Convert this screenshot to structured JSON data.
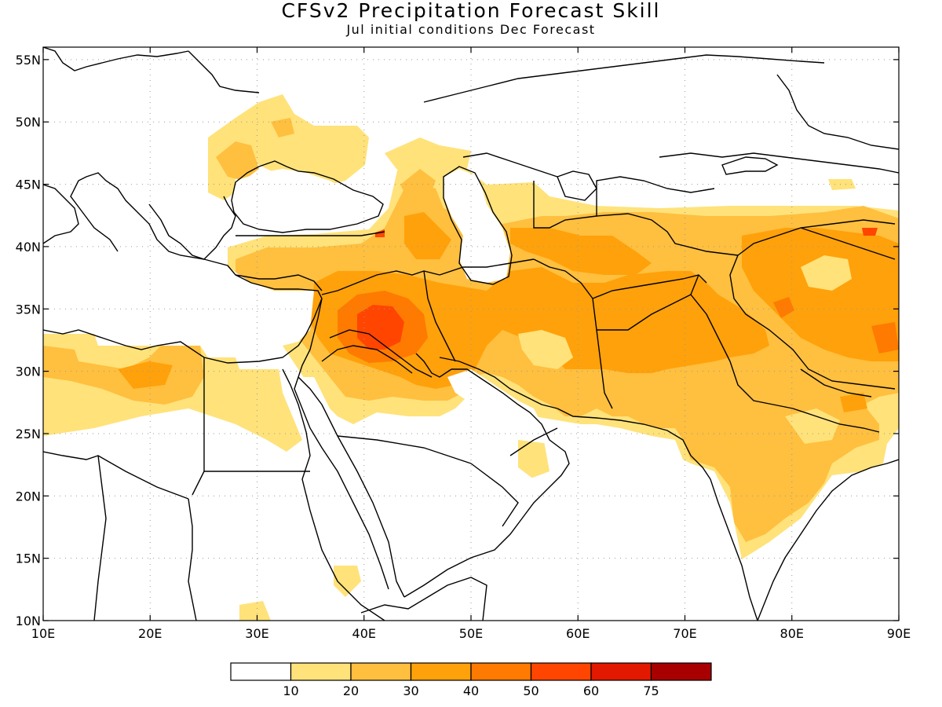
{
  "header": {
    "title": "CFSv2 Precipitation Forecast Skill",
    "subtitle": "Jul initial conditions   Dec Forecast"
  },
  "map": {
    "lon_range": [
      10,
      90
    ],
    "lat_range": [
      10,
      56
    ],
    "lat_ticks": [
      {
        "value": 55,
        "label": "55N"
      },
      {
        "value": 50,
        "label": "50N"
      },
      {
        "value": 45,
        "label": "45N"
      },
      {
        "value": 40,
        "label": "40N"
      },
      {
        "value": 35,
        "label": "35N"
      },
      {
        "value": 30,
        "label": "30N"
      },
      {
        "value": 25,
        "label": "25N"
      },
      {
        "value": 20,
        "label": "20N"
      },
      {
        "value": 15,
        "label": "15N"
      },
      {
        "value": 10,
        "label": "10N"
      }
    ],
    "lon_ticks": [
      {
        "value": 10,
        "label": "10E"
      },
      {
        "value": 20,
        "label": "20E"
      },
      {
        "value": 30,
        "label": "30E"
      },
      {
        "value": 40,
        "label": "40E"
      },
      {
        "value": 50,
        "label": "50E"
      },
      {
        "value": 60,
        "label": "60E"
      },
      {
        "value": 70,
        "label": "70E"
      },
      {
        "value": 80,
        "label": "80E"
      },
      {
        "value": 90,
        "label": "90E"
      }
    ],
    "grid": true
  },
  "legend": {
    "colors": [
      "#ffffff",
      "#ffe27a",
      "#ffbf3f",
      "#ffa10a",
      "#ff7a00",
      "#ff4500",
      "#e21800",
      "#a80000"
    ],
    "labels": [
      "10",
      "20",
      "30",
      "40",
      "50",
      "60",
      "75"
    ]
  }
}
